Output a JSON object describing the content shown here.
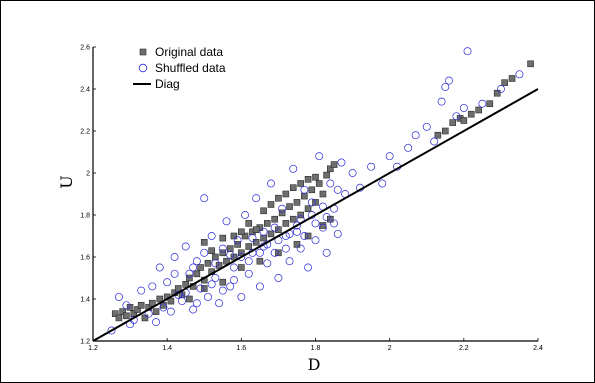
{
  "chart_data": {
    "type": "scatter",
    "xlabel": "D",
    "ylabel": "U",
    "xlim": [
      1.2,
      2.4
    ],
    "ylim": [
      1.2,
      2.6
    ],
    "x_ticks": [
      "1.2",
      "1.4",
      "1.6",
      "1.8",
      "2",
      "2.2",
      "2.4"
    ],
    "y_ticks": [
      "1.2",
      "1.4",
      "1.6",
      "1.8",
      "2",
      "2.2",
      "2.4",
      "2.6"
    ],
    "grid": false,
    "legend_position": "top-left",
    "legend": [
      "Original data",
      "Shuffled data",
      "Diag"
    ],
    "series": [
      {
        "name": "Original data",
        "marker": "square",
        "color": "#6e6e6e",
        "points": [
          [
            1.26,
            1.33
          ],
          [
            1.27,
            1.31
          ],
          [
            1.28,
            1.34
          ],
          [
            1.29,
            1.32
          ],
          [
            1.3,
            1.36
          ],
          [
            1.31,
            1.33
          ],
          [
            1.32,
            1.35
          ],
          [
            1.33,
            1.37
          ],
          [
            1.34,
            1.31
          ],
          [
            1.35,
            1.36
          ],
          [
            1.36,
            1.38
          ],
          [
            1.37,
            1.34
          ],
          [
            1.38,
            1.4
          ],
          [
            1.39,
            1.37
          ],
          [
            1.4,
            1.41
          ],
          [
            1.41,
            1.39
          ],
          [
            1.42,
            1.43
          ],
          [
            1.43,
            1.45
          ],
          [
            1.44,
            1.42
          ],
          [
            1.45,
            1.47
          ],
          [
            1.46,
            1.5
          ],
          [
            1.47,
            1.46
          ],
          [
            1.48,
            1.52
          ],
          [
            1.49,
            1.55
          ],
          [
            1.5,
            1.49
          ],
          [
            1.51,
            1.57
          ],
          [
            1.52,
            1.53
          ],
          [
            1.53,
            1.6
          ],
          [
            1.54,
            1.56
          ],
          [
            1.55,
            1.62
          ],
          [
            1.56,
            1.58
          ],
          [
            1.57,
            1.64
          ],
          [
            1.58,
            1.6
          ],
          [
            1.59,
            1.66
          ],
          [
            1.6,
            1.62
          ],
          [
            1.61,
            1.7
          ],
          [
            1.62,
            1.65
          ],
          [
            1.63,
            1.72
          ],
          [
            1.64,
            1.67
          ],
          [
            1.65,
            1.74
          ],
          [
            1.66,
            1.69
          ],
          [
            1.67,
            1.76
          ],
          [
            1.68,
            1.71
          ],
          [
            1.69,
            1.78
          ],
          [
            1.7,
            1.73
          ],
          [
            1.71,
            1.81
          ],
          [
            1.72,
            1.76
          ],
          [
            1.73,
            1.84
          ],
          [
            1.74,
            1.78
          ],
          [
            1.75,
            1.86
          ],
          [
            1.76,
            1.8
          ],
          [
            1.77,
            1.89
          ],
          [
            1.78,
            1.83
          ],
          [
            1.79,
            1.92
          ],
          [
            1.8,
            1.86
          ],
          [
            1.81,
            1.95
          ],
          [
            1.82,
            1.9
          ],
          [
            1.83,
            1.99
          ],
          [
            1.84,
            2.02
          ],
          [
            1.85,
            2.04
          ],
          [
            1.5,
            1.67
          ],
          [
            1.52,
            1.63
          ],
          [
            1.55,
            1.69
          ],
          [
            1.58,
            1.7
          ],
          [
            1.6,
            1.72
          ],
          [
            1.62,
            1.76
          ],
          [
            1.64,
            1.73
          ],
          [
            1.66,
            1.82
          ],
          [
            1.68,
            1.85
          ],
          [
            1.7,
            1.88
          ],
          [
            1.72,
            1.9
          ],
          [
            1.74,
            1.93
          ],
          [
            1.76,
            1.95
          ],
          [
            1.78,
            1.97
          ],
          [
            1.8,
            1.98
          ],
          [
            1.46,
            1.4
          ],
          [
            1.5,
            1.45
          ],
          [
            1.55,
            1.48
          ],
          [
            1.6,
            1.55
          ],
          [
            1.65,
            1.58
          ],
          [
            1.7,
            1.62
          ],
          [
            1.75,
            1.66
          ],
          [
            1.78,
            1.7
          ],
          [
            1.82,
            1.75
          ],
          [
            1.84,
            1.78
          ],
          [
            2.13,
            2.18
          ],
          [
            2.15,
            2.2
          ],
          [
            2.17,
            2.24
          ],
          [
            2.19,
            2.26
          ],
          [
            2.2,
            2.25
          ],
          [
            2.22,
            2.28
          ],
          [
            2.24,
            2.3
          ],
          [
            2.27,
            2.33
          ],
          [
            2.29,
            2.38
          ],
          [
            2.31,
            2.43
          ],
          [
            2.33,
            2.45
          ],
          [
            2.38,
            2.52
          ]
        ]
      },
      {
        "name": "Shuffled data",
        "marker": "circle",
        "color": "#2a2ad8",
        "points": [
          [
            1.25,
            1.25
          ],
          [
            1.27,
            1.41
          ],
          [
            1.29,
            1.37
          ],
          [
            1.31,
            1.3
          ],
          [
            1.33,
            1.44
          ],
          [
            1.35,
            1.33
          ],
          [
            1.36,
            1.46
          ],
          [
            1.37,
            1.29
          ],
          [
            1.38,
            1.55
          ],
          [
            1.39,
            1.36
          ],
          [
            1.4,
            1.48
          ],
          [
            1.41,
            1.34
          ],
          [
            1.42,
            1.6
          ],
          [
            1.43,
            1.42
          ],
          [
            1.44,
            1.39
          ],
          [
            1.45,
            1.65
          ],
          [
            1.46,
            1.52
          ],
          [
            1.47,
            1.35
          ],
          [
            1.48,
            1.58
          ],
          [
            1.49,
            1.45
          ],
          [
            1.5,
            1.62
          ],
          [
            1.5,
            1.88
          ],
          [
            1.51,
            1.41
          ],
          [
            1.52,
            1.7
          ],
          [
            1.53,
            1.5
          ],
          [
            1.54,
            1.38
          ],
          [
            1.55,
            1.64
          ],
          [
            1.56,
            1.77
          ],
          [
            1.57,
            1.46
          ],
          [
            1.58,
            1.55
          ],
          [
            1.59,
            1.68
          ],
          [
            1.6,
            1.41
          ],
          [
            1.61,
            1.8
          ],
          [
            1.62,
            1.52
          ],
          [
            1.63,
            1.62
          ],
          [
            1.64,
            1.88
          ],
          [
            1.65,
            1.46
          ],
          [
            1.66,
            1.72
          ],
          [
            1.67,
            1.57
          ],
          [
            1.68,
            1.95
          ],
          [
            1.69,
            1.62
          ],
          [
            1.7,
            1.5
          ],
          [
            1.71,
            1.83
          ],
          [
            1.72,
            1.7
          ],
          [
            1.73,
            1.58
          ],
          [
            1.74,
            2.02
          ],
          [
            1.75,
            1.75
          ],
          [
            1.76,
            1.64
          ],
          [
            1.77,
            1.92
          ],
          [
            1.78,
            1.55
          ],
          [
            1.79,
            1.8
          ],
          [
            1.8,
            1.68
          ],
          [
            1.81,
            2.08
          ],
          [
            1.82,
            1.74
          ],
          [
            1.83,
            1.62
          ],
          [
            1.84,
            1.95
          ],
          [
            1.85,
            1.83
          ],
          [
            1.86,
            1.71
          ],
          [
            1.87,
            2.05
          ],
          [
            1.88,
            1.9
          ],
          [
            1.9,
            2.0
          ],
          [
            1.92,
            1.93
          ],
          [
            1.95,
            2.03
          ],
          [
            1.98,
            1.95
          ],
          [
            2.0,
            2.08
          ],
          [
            2.02,
            2.03
          ],
          [
            2.05,
            2.12
          ],
          [
            2.07,
            2.18
          ],
          [
            2.1,
            2.22
          ],
          [
            2.12,
            2.15
          ],
          [
            2.14,
            2.34
          ],
          [
            2.15,
            2.41
          ],
          [
            2.16,
            2.44
          ],
          [
            2.18,
            2.27
          ],
          [
            2.2,
            2.31
          ],
          [
            2.21,
            2.58
          ],
          [
            2.25,
            2.33
          ],
          [
            2.3,
            2.4
          ],
          [
            2.35,
            2.47
          ],
          [
            1.3,
            1.28
          ],
          [
            1.45,
            1.43
          ],
          [
            1.48,
            1.38
          ],
          [
            1.52,
            1.47
          ],
          [
            1.55,
            1.44
          ],
          [
            1.58,
            1.49
          ],
          [
            1.6,
            1.6
          ],
          [
            1.62,
            1.58
          ],
          [
            1.65,
            1.62
          ],
          [
            1.67,
            1.66
          ],
          [
            1.7,
            1.68
          ],
          [
            1.72,
            1.64
          ],
          [
            1.75,
            1.72
          ],
          [
            1.77,
            1.7
          ],
          [
            1.8,
            1.76
          ],
          [
            1.83,
            1.79
          ],
          [
            1.85,
            1.76
          ],
          [
            1.42,
            1.52
          ],
          [
            1.47,
            1.55
          ],
          [
            1.53,
            1.57
          ],
          [
            1.57,
            1.61
          ],
          [
            1.63,
            1.69
          ],
          [
            1.66,
            1.65
          ],
          [
            1.69,
            1.74
          ],
          [
            1.73,
            1.71
          ],
          [
            1.76,
            1.78
          ],
          [
            1.79,
            1.86
          ],
          [
            1.82,
            1.84
          ],
          [
            1.86,
            1.92
          ]
        ]
      },
      {
        "name": "Diag",
        "marker": "line",
        "color": "#000000",
        "points": [
          [
            1.2,
            1.2
          ],
          [
            2.4,
            2.4
          ]
        ]
      }
    ]
  }
}
